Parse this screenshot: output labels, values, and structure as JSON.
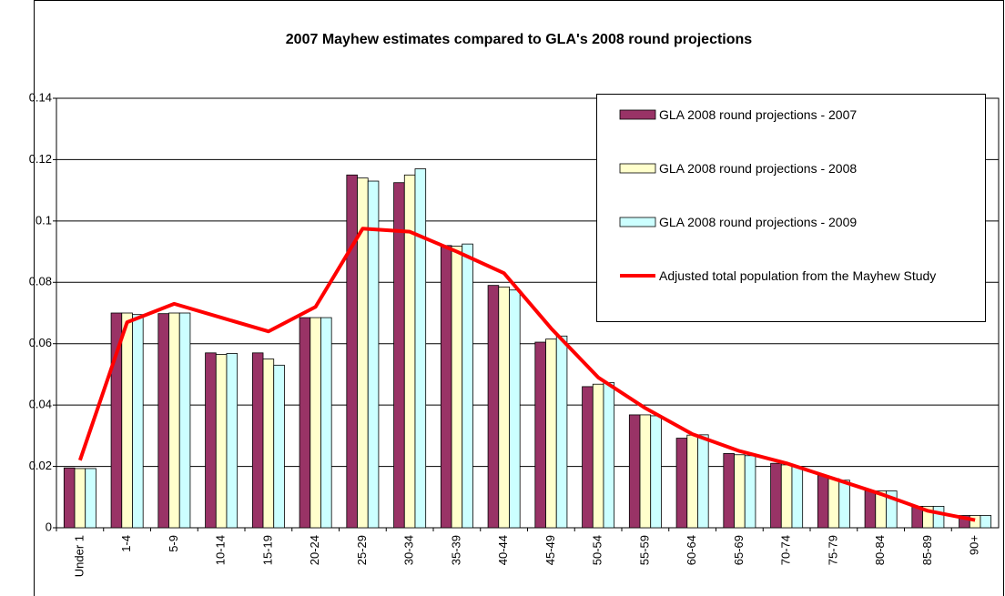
{
  "chart_data": {
    "type": "bar",
    "title": "2007 Mayhew estimates compared to GLA's 2008 round projections",
    "categories": [
      "Under 1",
      "1-4",
      "5-9",
      "10-14",
      "15-19",
      "20-24",
      "25-29",
      "30-34",
      "35-39",
      "40-44",
      "45-49",
      "50-54",
      "55-59",
      "60-64",
      "65-69",
      "70-74",
      "75-79",
      "80-84",
      "85-89",
      "90+"
    ],
    "series": [
      {
        "name": "GLA 2008 round projections - 2007",
        "type": "bar",
        "color": "#993366",
        "values": [
          0.0195,
          0.07,
          0.0698,
          0.057,
          0.057,
          0.0685,
          0.115,
          0.1125,
          0.092,
          0.079,
          0.0605,
          0.046,
          0.0368,
          0.0292,
          0.0242,
          0.021,
          0.017,
          0.012,
          0.007,
          0.004
        ]
      },
      {
        "name": "GLA 2008 round projections - 2008",
        "type": "bar",
        "color": "#ffffcc",
        "values": [
          0.0193,
          0.07,
          0.07,
          0.0565,
          0.055,
          0.0685,
          0.114,
          0.115,
          0.0918,
          0.0785,
          0.0615,
          0.0468,
          0.0368,
          0.0302,
          0.0238,
          0.0205,
          0.016,
          0.012,
          0.007,
          0.004
        ]
      },
      {
        "name": "GLA 2008 round projections - 2009",
        "type": "bar",
        "color": "#ccffff",
        "values": [
          0.0193,
          0.0695,
          0.07,
          0.0568,
          0.053,
          0.0685,
          0.113,
          0.117,
          0.0925,
          0.0775,
          0.0625,
          0.0473,
          0.0365,
          0.0303,
          0.0235,
          0.02,
          0.0155,
          0.012,
          0.007,
          0.004
        ]
      },
      {
        "name": "Adjusted total population from the Mayhew Study",
        "type": "line",
        "color": "#ff0000",
        "values": [
          0.022,
          0.067,
          0.073,
          0.0685,
          0.064,
          0.072,
          0.0975,
          0.0965,
          0.09,
          0.083,
          0.065,
          0.049,
          0.039,
          0.0305,
          0.025,
          0.021,
          0.016,
          0.011,
          0.0055,
          0.0025
        ]
      }
    ],
    "ylim": [
      0,
      0.14
    ],
    "yticks": [
      0,
      0.02,
      0.04,
      0.06,
      0.08,
      0.1,
      0.12,
      0.14
    ],
    "grid": true,
    "legend": "upper right"
  }
}
